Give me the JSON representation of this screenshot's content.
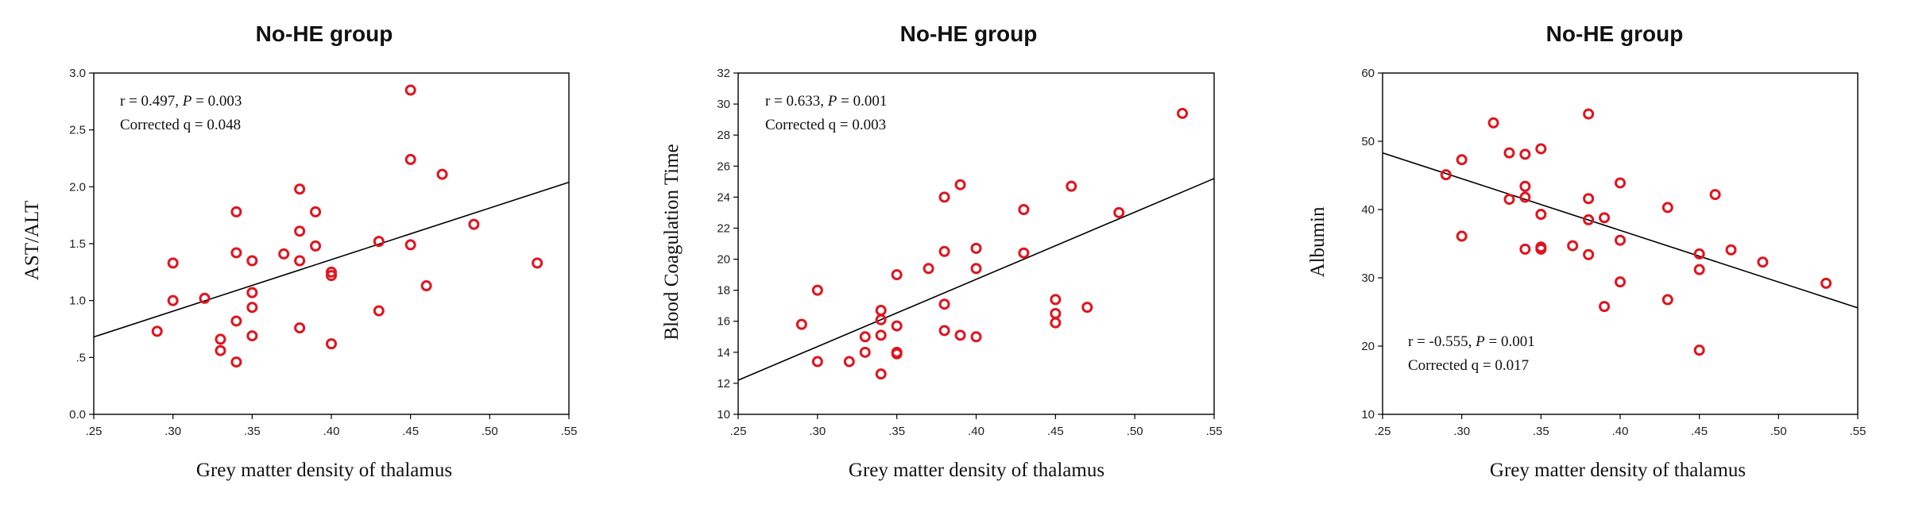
{
  "chart_data": [
    {
      "type": "scatter",
      "title": "No-HE group",
      "xlabel": "Grey matter density of thalamus",
      "ylabel": "AST/ALT",
      "xlim": [
        0.25,
        0.55
      ],
      "ylim": [
        0.0,
        3.0
      ],
      "xticks": [
        ".25",
        ".30",
        ".35",
        ".40",
        ".45",
        ".50",
        ".55"
      ],
      "yticks": [
        "0.0",
        ".5",
        "1.0",
        "1.5",
        "2.0",
        "2.5",
        "3.0"
      ],
      "annotation": {
        "r_text": "r = 0.497, ",
        "p_label": "P",
        "p_text": " = 0.003",
        "q_text": "Corrected q = 0.048",
        "placement": "top-left"
      },
      "fit_line": {
        "x": [
          0.25,
          0.55
        ],
        "y": [
          0.68,
          2.04
        ]
      },
      "point_color": "#e0141e",
      "points": [
        {
          "x": 0.29,
          "y": 0.73
        },
        {
          "x": 0.3,
          "y": 1.33
        },
        {
          "x": 0.3,
          "y": 1.0
        },
        {
          "x": 0.32,
          "y": 1.02
        },
        {
          "x": 0.33,
          "y": 0.66
        },
        {
          "x": 0.33,
          "y": 0.56
        },
        {
          "x": 0.34,
          "y": 1.78
        },
        {
          "x": 0.34,
          "y": 1.42
        },
        {
          "x": 0.34,
          "y": 0.82
        },
        {
          "x": 0.34,
          "y": 0.46
        },
        {
          "x": 0.35,
          "y": 1.35
        },
        {
          "x": 0.35,
          "y": 1.07
        },
        {
          "x": 0.35,
          "y": 0.94
        },
        {
          "x": 0.35,
          "y": 0.69
        },
        {
          "x": 0.37,
          "y": 1.41
        },
        {
          "x": 0.38,
          "y": 1.98
        },
        {
          "x": 0.38,
          "y": 1.61
        },
        {
          "x": 0.38,
          "y": 1.35
        },
        {
          "x": 0.38,
          "y": 0.76
        },
        {
          "x": 0.39,
          "y": 1.78
        },
        {
          "x": 0.39,
          "y": 1.48
        },
        {
          "x": 0.4,
          "y": 1.25
        },
        {
          "x": 0.4,
          "y": 1.22
        },
        {
          "x": 0.4,
          "y": 0.62
        },
        {
          "x": 0.43,
          "y": 1.52
        },
        {
          "x": 0.43,
          "y": 0.91
        },
        {
          "x": 0.45,
          "y": 2.85
        },
        {
          "x": 0.45,
          "y": 2.24
        },
        {
          "x": 0.45,
          "y": 1.49
        },
        {
          "x": 0.46,
          "y": 1.13
        },
        {
          "x": 0.47,
          "y": 2.11
        },
        {
          "x": 0.49,
          "y": 1.67
        },
        {
          "x": 0.53,
          "y": 1.33
        }
      ]
    },
    {
      "type": "scatter",
      "title": "No-HE group",
      "xlabel": "Grey matter density of thalamus",
      "ylabel": "Blood Coagulation Time",
      "xlim": [
        0.25,
        0.55
      ],
      "ylim": [
        10,
        32
      ],
      "xticks": [
        ".25",
        ".30",
        ".35",
        ".40",
        ".45",
        ".50",
        ".55"
      ],
      "yticks": [
        "10",
        "12",
        "14",
        "16",
        "18",
        "20",
        "22",
        "24",
        "26",
        "28",
        "30",
        "32"
      ],
      "annotation": {
        "r_text": "r = 0.633, ",
        "p_label": "P",
        "p_text": " = 0.001",
        "q_text": "Corrected q = 0.003",
        "placement": "top-left"
      },
      "fit_line": {
        "x": [
          0.25,
          0.55
        ],
        "y": [
          12.2,
          25.2
        ]
      },
      "point_color": "#e0141e",
      "points": [
        {
          "x": 0.29,
          "y": 15.8
        },
        {
          "x": 0.3,
          "y": 18.0
        },
        {
          "x": 0.3,
          "y": 13.4
        },
        {
          "x": 0.32,
          "y": 13.4
        },
        {
          "x": 0.33,
          "y": 15.0
        },
        {
          "x": 0.33,
          "y": 14.0
        },
        {
          "x": 0.34,
          "y": 16.7
        },
        {
          "x": 0.34,
          "y": 16.1
        },
        {
          "x": 0.34,
          "y": 15.1
        },
        {
          "x": 0.34,
          "y": 12.6
        },
        {
          "x": 0.35,
          "y": 19.0
        },
        {
          "x": 0.35,
          "y": 15.7
        },
        {
          "x": 0.35,
          "y": 14.0
        },
        {
          "x": 0.35,
          "y": 13.9
        },
        {
          "x": 0.37,
          "y": 19.4
        },
        {
          "x": 0.38,
          "y": 24.0
        },
        {
          "x": 0.38,
          "y": 20.5
        },
        {
          "x": 0.38,
          "y": 17.1
        },
        {
          "x": 0.38,
          "y": 15.4
        },
        {
          "x": 0.39,
          "y": 24.8
        },
        {
          "x": 0.39,
          "y": 15.1
        },
        {
          "x": 0.4,
          "y": 20.7
        },
        {
          "x": 0.4,
          "y": 19.4
        },
        {
          "x": 0.4,
          "y": 15.0
        },
        {
          "x": 0.43,
          "y": 23.2
        },
        {
          "x": 0.43,
          "y": 20.4
        },
        {
          "x": 0.45,
          "y": 17.4
        },
        {
          "x": 0.45,
          "y": 16.5
        },
        {
          "x": 0.45,
          "y": 15.9
        },
        {
          "x": 0.46,
          "y": 24.7
        },
        {
          "x": 0.47,
          "y": 16.9
        },
        {
          "x": 0.49,
          "y": 23.0
        },
        {
          "x": 0.53,
          "y": 29.4
        }
      ]
    },
    {
      "type": "scatter",
      "title": "No-HE group",
      "xlabel": "Grey matter density of thalamus",
      "ylabel": "Albumin",
      "xlim": [
        0.25,
        0.55
      ],
      "ylim": [
        10,
        60
      ],
      "xticks": [
        ".25",
        ".30",
        ".35",
        ".40",
        ".45",
        ".50",
        ".55"
      ],
      "yticks": [
        "10",
        "20",
        "30",
        "40",
        "50",
        "60"
      ],
      "annotation": {
        "r_text": "r = -0.555, ",
        "p_label": "P",
        "p_text": " = 0.001",
        "q_text": "Corrected q = 0.017",
        "placement": "bottom-left"
      },
      "fit_line": {
        "x": [
          0.25,
          0.55
        ],
        "y": [
          48.3,
          25.6
        ]
      },
      "point_color": "#e0141e",
      "points": [
        {
          "x": 0.29,
          "y": 45.1
        },
        {
          "x": 0.3,
          "y": 47.3
        },
        {
          "x": 0.3,
          "y": 36.1
        },
        {
          "x": 0.32,
          "y": 52.7
        },
        {
          "x": 0.33,
          "y": 48.3
        },
        {
          "x": 0.33,
          "y": 41.5
        },
        {
          "x": 0.34,
          "y": 48.1
        },
        {
          "x": 0.34,
          "y": 43.4
        },
        {
          "x": 0.34,
          "y": 41.8
        },
        {
          "x": 0.34,
          "y": 34.2
        },
        {
          "x": 0.35,
          "y": 48.9
        },
        {
          "x": 0.35,
          "y": 39.3
        },
        {
          "x": 0.35,
          "y": 34.5
        },
        {
          "x": 0.35,
          "y": 34.2
        },
        {
          "x": 0.37,
          "y": 34.7
        },
        {
          "x": 0.38,
          "y": 54.0
        },
        {
          "x": 0.38,
          "y": 41.6
        },
        {
          "x": 0.38,
          "y": 38.5
        },
        {
          "x": 0.38,
          "y": 33.4
        },
        {
          "x": 0.39,
          "y": 38.8
        },
        {
          "x": 0.39,
          "y": 25.8
        },
        {
          "x": 0.4,
          "y": 43.9
        },
        {
          "x": 0.4,
          "y": 35.5
        },
        {
          "x": 0.4,
          "y": 29.4
        },
        {
          "x": 0.43,
          "y": 40.3
        },
        {
          "x": 0.43,
          "y": 26.8
        },
        {
          "x": 0.45,
          "y": 33.5
        },
        {
          "x": 0.45,
          "y": 31.2
        },
        {
          "x": 0.45,
          "y": 19.4
        },
        {
          "x": 0.46,
          "y": 42.2
        },
        {
          "x": 0.47,
          "y": 34.1
        },
        {
          "x": 0.49,
          "y": 32.3
        },
        {
          "x": 0.53,
          "y": 29.2
        }
      ]
    }
  ]
}
